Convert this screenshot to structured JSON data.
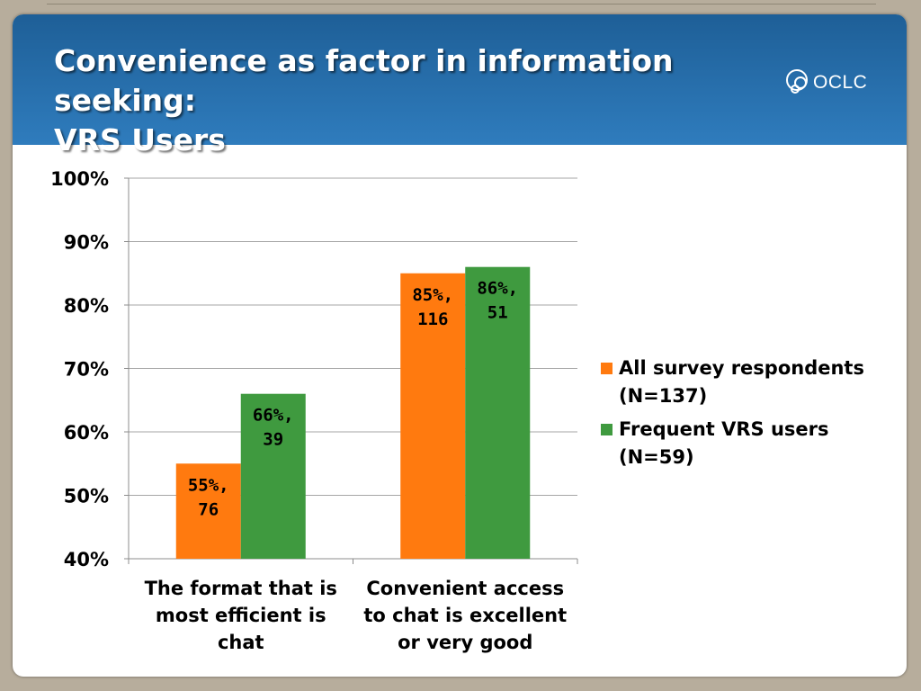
{
  "slide": {
    "title_line1": "Convenience as factor in information seeking:",
    "title_line2": "VRS Users",
    "logo_text": "OCLC"
  },
  "colors": {
    "header": "#2a70b0",
    "series_all": "#ff7a0f",
    "series_frequent": "#3f9a3f",
    "gridline": "#a6a6a6",
    "background": "#b7ad9c"
  },
  "chart_data": {
    "type": "bar",
    "categories": [
      [
        "The format that is",
        "most efficient is",
        "chat"
      ],
      [
        "Convenient access",
        "to chat is excellent",
        "or very good"
      ]
    ],
    "series": [
      {
        "name": "All survey respondents (N=137)",
        "name_lines": [
          "All survey respondents",
          "(N=137)"
        ],
        "color": "#ff7a0f",
        "values": [
          55,
          85
        ],
        "labels": [
          [
            "55%,",
            "76"
          ],
          [
            "85%,",
            "116"
          ]
        ]
      },
      {
        "name": "Frequent VRS users (N=59)",
        "name_lines": [
          "Frequent VRS users",
          "(N=59)"
        ],
        "color": "#3f9a3f",
        "values": [
          66,
          86
        ],
        "labels": [
          [
            "66%,",
            "39"
          ],
          [
            "86%,",
            "51"
          ]
        ]
      }
    ],
    "ylim": [
      40,
      100
    ],
    "yticks": [
      "40%",
      "50%",
      "60%",
      "70%",
      "80%",
      "90%",
      "100%"
    ],
    "grid": true,
    "legend_position": "right"
  }
}
